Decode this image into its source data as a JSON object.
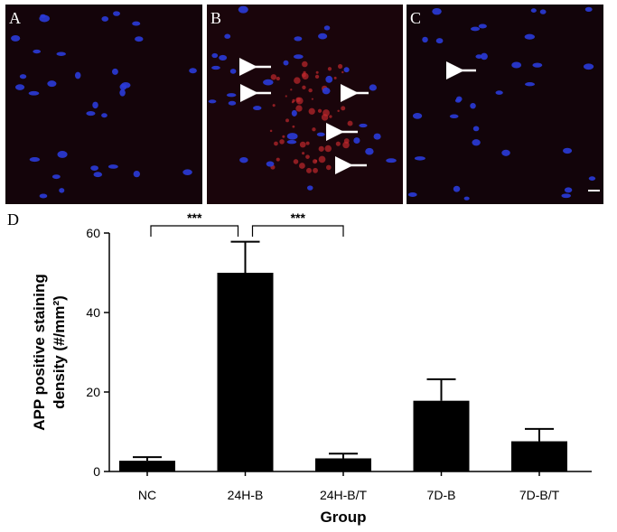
{
  "panels": [
    {
      "label": "A"
    },
    {
      "label": "B"
    },
    {
      "label": "C"
    }
  ],
  "chart_data": {
    "type": "bar",
    "panel_label": "D",
    "categories": [
      "NC",
      "24H-B",
      "24H-B/T",
      "7D-B",
      "7D-B/T"
    ],
    "values": [
      2.7,
      50,
      3.3,
      17.8,
      7.6
    ],
    "errors": [
      0.9,
      7.8,
      1.2,
      5.4,
      3.1
    ],
    "color": "#000000",
    "ylim": [
      0,
      60
    ],
    "yticks": [
      0,
      20,
      40,
      60
    ],
    "ylabel": [
      "APP positive staining",
      "density (#/mm²)"
    ],
    "xlabel": "Group",
    "significance": [
      {
        "from": 0,
        "to": 1,
        "label": "***"
      },
      {
        "from": 1,
        "to": 2,
        "label": "***"
      }
    ]
  }
}
